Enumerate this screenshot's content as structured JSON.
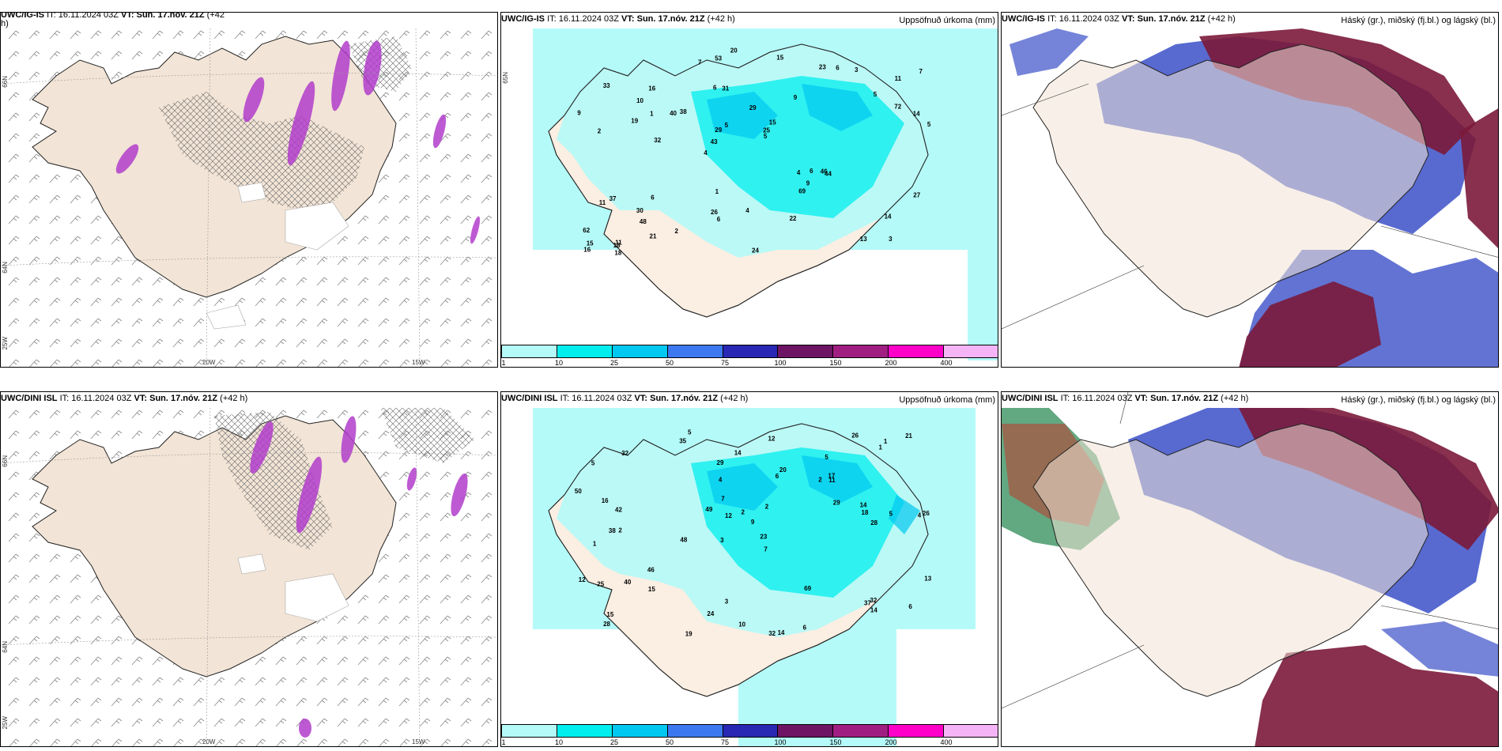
{
  "panels": {
    "top_left": {
      "model": "UWC/IG-IS",
      "it": "IT: 16.11.2024 03Z",
      "vt_label": "VT: Sun. 17.nóv. 21Z",
      "lead": "(+42",
      "lead2": "h)",
      "right": ""
    },
    "top_mid": {
      "model": "UWC/IG-IS",
      "it": "IT: 16.11.2024 03Z",
      "vt_label": "VT: Sun. 17.nóv. 21Z",
      "lead": "(+42 h)",
      "right": "Uppsöfnuð úrkoma (mm)"
    },
    "top_right": {
      "model": "UWC/IG-IS",
      "it": "IT: 16.11.2024 03Z",
      "vt_label": "VT: Sun. 17.nóv. 21Z",
      "lead": "(+42 h)",
      "right": "Háský (gr.), miðský (fj.bl.) og lágský (bl.)"
    },
    "bot_left": {
      "model": "UWC/DINI ISL",
      "it": "IT: 16.11.2024 03Z",
      "vt_label": "VT: Sun. 17.nóv. 21Z",
      "lead": "(+42 h)",
      "right": ""
    },
    "bot_mid": {
      "model": "UWC/DINI ISL",
      "it": "IT: 16.11.2024 03Z",
      "vt_label": "VT: Sun. 17.nóv. 21Z",
      "lead": "(+42 h)",
      "right": "Uppsöfnuð úrkoma (mm)"
    },
    "bot_right": {
      "model": "UWC/DINI ISL",
      "it": "IT: 16.11.2024 03Z",
      "vt_label": "VT: Sun. 17.nóv. 21Z",
      "lead": "(+42 h)",
      "right": "Háský (gr.), miðský (fj.bl.) og lágský (bl.)"
    }
  },
  "axes": {
    "lon_20": "20W",
    "lon_15": "15W",
    "lon_25": "25W",
    "lat_66": "66N",
    "lat_64": "64N",
    "lat_65": "65N"
  },
  "colorbar": {
    "labels": [
      "1",
      "10",
      "25",
      "50",
      "75",
      "100",
      "150",
      "200",
      "400"
    ],
    "colors": [
      "#b4faf8",
      "#00eeee",
      "#00c8f0",
      "#3c78f0",
      "#2828b4",
      "#6e1464",
      "#a01e82",
      "#ff00c8",
      "#f5b4f5"
    ]
  },
  "top_mid_values": [
    "3",
    "2",
    "11",
    "4",
    "9",
    "11",
    "6",
    "29",
    "37",
    "38",
    "62",
    "48",
    "31",
    "15",
    "44",
    "33",
    "53",
    "5",
    "4",
    "72",
    "43",
    "26",
    "29",
    "16",
    "23",
    "6",
    "13",
    "14",
    "46",
    "24",
    "40",
    "19",
    "69",
    "21",
    "14",
    "25",
    "15",
    "6",
    "5",
    "11",
    "5",
    "7",
    "9",
    "22",
    "30",
    "18",
    "16",
    "4",
    "3",
    "20",
    "32",
    "9",
    "10",
    "6",
    "18",
    "15",
    "7",
    "5",
    "27",
    "1",
    "2",
    "6",
    "1"
  ],
  "bot_mid_values": [
    "5",
    "5",
    "4",
    "3",
    "7",
    "2",
    "5",
    "2",
    "1",
    "6",
    "9",
    "28",
    "35",
    "48",
    "32",
    "14",
    "3",
    "26",
    "29",
    "46",
    "42",
    "38",
    "26",
    "5",
    "12",
    "16",
    "12",
    "18",
    "32",
    "25",
    "37",
    "20",
    "40",
    "49",
    "69",
    "13",
    "14",
    "24",
    "21",
    "14",
    "15",
    "19",
    "6",
    "32",
    "10",
    "11",
    "14",
    "17",
    "50",
    "23",
    "29",
    "28",
    "2",
    "1",
    "12",
    "15",
    "7",
    "2",
    "1",
    "4",
    "6"
  ]
}
